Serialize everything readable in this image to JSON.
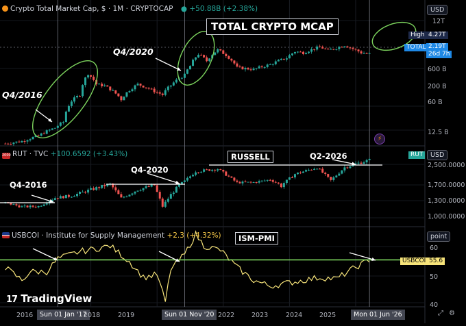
{
  "panels": {
    "crypto": {
      "title": "Crypto Total Market Cap, $ · 1M · CRYPTOCAP",
      "change": "+50.88B (+2.38%)",
      "annotation_box": "TOTAL CRYPTO MCAP",
      "labels": [
        "Q4/2016",
        "Q4/2020"
      ],
      "price_tags": {
        "high_label": "High",
        "high_value": "4.27T",
        "total_label": "TOTAL",
        "total_value": "2.19T",
        "countdown": "26d 7h"
      },
      "currency": "USD",
      "y_ticks": [
        "12T",
        "600 B",
        "200 B",
        "60 B",
        "12.5 B"
      ],
      "colors": {
        "up": "#26a69a",
        "down": "#ef5350",
        "highlight": "#7cd35d",
        "tag": "#1e88e5"
      }
    },
    "rut": {
      "title": "RUT · TVC",
      "change": "+100.6592 (+3.43%)",
      "annotation_box": "RUSSELL",
      "labels": [
        "Q4-2016",
        "Q4-2020",
        "Q2-2026"
      ],
      "price_tag": "RUT",
      "currency": "USD",
      "y_ticks": [
        "2,500.0000",
        "1,700.0000",
        "1,300.0000",
        "1,000.0000"
      ]
    },
    "pmi": {
      "title": "USBCOI · Institute for Supply Management",
      "change": "+2.3 (+4.32%)",
      "annotation_box": "ISM-PMI",
      "price_tag_label": "USBCOI",
      "price_tag_value": "55.6",
      "scale_label": "point",
      "y_ticks": [
        "60",
        "50",
        "40"
      ],
      "colors": {
        "line": "#f7e47a",
        "threshold": "#7cd35d"
      }
    }
  },
  "x_axis": {
    "labels": [
      "2016",
      "2018",
      "2019",
      "2022",
      "2023",
      "2024",
      "2025"
    ],
    "highlights": [
      "Sun 01 Jan '17",
      "Sun 01 Nov '20",
      "Mon 01 Jun '26"
    ]
  },
  "branding": {
    "logo_text": "TradingView"
  },
  "chart_data": [
    {
      "type": "candlestick",
      "title": "Crypto Total Market Cap, $ · 1M · CRYPTOCAP",
      "scale": "log",
      "y_unit": "USD",
      "x": [
        "2015-06",
        "2015-12",
        "2016-06",
        "2016-12",
        "2017-03",
        "2017-06",
        "2017-09",
        "2017-12",
        "2018-03",
        "2018-06",
        "2018-12",
        "2019-06",
        "2019-12",
        "2020-03",
        "2020-06",
        "2020-11",
        "2021-01",
        "2021-04",
        "2021-07",
        "2021-11",
        "2022-06",
        "2022-12",
        "2023-06",
        "2023-12",
        "2024-03",
        "2024-06",
        "2024-12",
        "2025-03",
        "2025-06",
        "2025-09",
        "2025-12",
        "2026-03",
        "2026-06"
      ],
      "y": [
        6000000000.0,
        7000000000.0,
        10000000000.0,
        17000000000.0,
        25000000000.0,
        100000000000.0,
        150000000000.0,
        600000000000.0,
        300000000000.0,
        270000000000.0,
        110000000000.0,
        300000000000.0,
        190000000000.0,
        150000000000.0,
        280000000000.0,
        550000000000.0,
        1000000000000.0,
        2200000000000.0,
        1400000000000.0,
        2900000000000.0,
        900000000000.0,
        800000000000.0,
        1100000000000.0,
        1700000000000.0,
        2600000000000.0,
        2400000000000.0,
        3500000000000.0,
        2800000000000.0,
        3300000000000.0,
        3900000000000.0,
        3100000000000.0,
        2400000000000.0,
        2190000000000.0
      ],
      "y_ticks": [
        "12.5 B",
        "60 B",
        "200 B",
        "600 B",
        "12T"
      ],
      "last_value": "2.19T",
      "high": "4.27T"
    },
    {
      "type": "candlestick",
      "title": "RUT · TVC",
      "y_unit": "USD",
      "x": [
        "2015-06",
        "2015-12",
        "2016-06",
        "2016-12",
        "2017-06",
        "2017-12",
        "2018-08",
        "2018-12",
        "2019-06",
        "2019-12",
        "2020-03",
        "2020-06",
        "2020-11",
        "2021-03",
        "2021-11",
        "2022-06",
        "2022-12",
        "2023-06",
        "2023-10",
        "2024-03",
        "2024-11",
        "2025-04",
        "2025-09",
        "2026-01",
        "2026-06"
      ],
      "y": [
        1240,
        1140,
        1150,
        1360,
        1410,
        1540,
        1700,
        1350,
        1560,
        1670,
        1150,
        1440,
        1820,
        2230,
        2340,
        1760,
        1770,
        1880,
        1650,
        2120,
        2400,
        1850,
        2400,
        2550,
        2710
      ],
      "y_ticks": [
        "1,000.0000",
        "1,300.0000",
        "1,700.0000",
        "2,500.0000"
      ],
      "last_value": "RUT"
    },
    {
      "type": "line",
      "title": "USBCOI · Institute for Supply Management",
      "y_unit": "point",
      "x": [
        "2015-06",
        "2015-12",
        "2016-03",
        "2016-09",
        "2017-01",
        "2017-09",
        "2018-03",
        "2018-08",
        "2019-03",
        "2019-08",
        "2020-01",
        "2020-04",
        "2020-06",
        "2020-11",
        "2021-03",
        "2021-06",
        "2021-12",
        "2022-06",
        "2022-12",
        "2023-06",
        "2023-12",
        "2024-06",
        "2024-12",
        "2025-06",
        "2025-12",
        "2026-06"
      ],
      "y": [
        53,
        48.5,
        51.5,
        51.5,
        56,
        58.5,
        59.5,
        60.5,
        55,
        49.5,
        50.5,
        41,
        52.5,
        57.5,
        64.5,
        60.5,
        59,
        53,
        48.5,
        46.5,
        47.5,
        48.5,
        49.5,
        49,
        52.5,
        55.6
      ],
      "threshold": 55.6,
      "y_ticks": [
        "40",
        "50",
        "60"
      ],
      "last_value": "55.6"
    }
  ]
}
